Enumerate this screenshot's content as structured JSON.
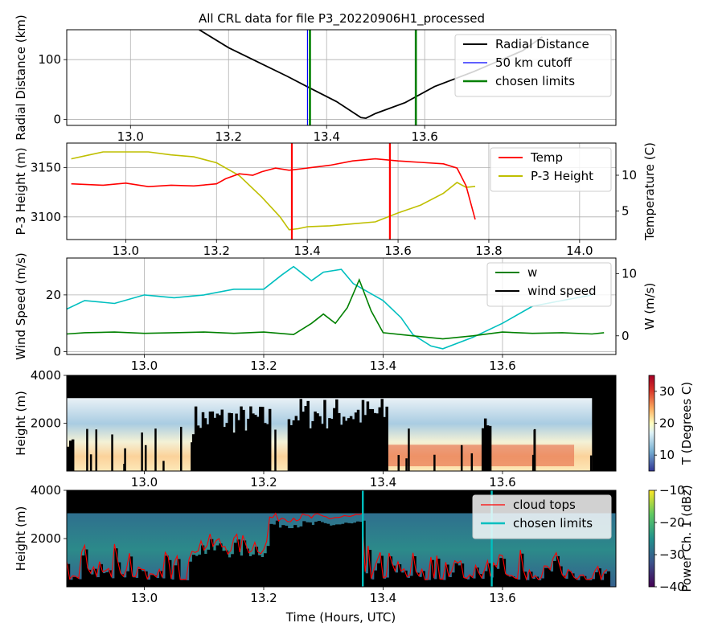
{
  "figure": {
    "title": "All CRL data for file P3_20220906H1_processed",
    "xlabel_bottom": "Time (Hours, UTC)"
  },
  "chart_data": [
    {
      "panel": "radial",
      "type": "line",
      "ylabel": "Radial Distance (km)",
      "xlim": [
        12.87,
        13.99
      ],
      "ylim": [
        -10,
        150
      ],
      "xticks": [
        "13.0",
        "13.2",
        "13.4",
        "13.6"
      ],
      "yticks": [
        "0",
        "100"
      ],
      "grid": true,
      "legend_position": "upper right",
      "legend": [
        "Radial Distance",
        "50 km cutoff",
        "chosen limits"
      ],
      "series": [
        {
          "name": "Radial Distance",
          "color": "#000000",
          "x": [
            13.14,
            13.2,
            13.26,
            13.32,
            13.36,
            13.42,
            13.47,
            13.48,
            13.5,
            13.56,
            13.62,
            13.7,
            13.8,
            13.84
          ],
          "y": [
            150,
            120,
            96,
            72,
            55,
            30,
            3,
            2,
            10,
            28,
            55,
            80,
            115,
            138
          ]
        },
        {
          "name": "50 km cutoff",
          "color": "#0000ff",
          "vlines": [
            13.361,
            13.581
          ]
        },
        {
          "name": "chosen limits",
          "color": "#008000",
          "vlines": [
            13.366,
            13.582
          ]
        }
      ]
    },
    {
      "panel": "height_temp",
      "type": "line",
      "ylabel": "P-3 Height (m)",
      "ylabel_right": "Temperature (C)",
      "xlim": [
        12.87,
        14.08
      ],
      "ylim": [
        3077,
        3175
      ],
      "ylim_right": [
        1,
        14.5
      ],
      "xticks": [
        "13.0",
        "13.2",
        "13.4",
        "13.6",
        "13.8",
        "14.0"
      ],
      "yticks": [
        "3100",
        "3150"
      ],
      "yticks_right": [
        "5",
        "10"
      ],
      "grid": true,
      "legend_position": "upper right",
      "legend": [
        "Temp",
        "P-3 Height"
      ],
      "vlines_color": "#ff0000",
      "vlines": [
        13.366,
        13.582
      ],
      "series": [
        {
          "name": "Temp",
          "color": "#ff0000",
          "axis": "right",
          "x": [
            12.88,
            12.95,
            13.0,
            13.05,
            13.1,
            13.15,
            13.2,
            13.22,
            13.25,
            13.28,
            13.3,
            13.33,
            13.36,
            13.4,
            13.45,
            13.5,
            13.55,
            13.6,
            13.65,
            13.7,
            13.73,
            13.75,
            13.77
          ],
          "y": [
            8.8,
            8.6,
            8.9,
            8.4,
            8.6,
            8.5,
            8.8,
            9.5,
            10.2,
            10.0,
            10.5,
            11.0,
            10.7,
            11.0,
            11.4,
            12.0,
            12.3,
            12.0,
            11.8,
            11.6,
            11.0,
            8.5,
            3.8
          ]
        },
        {
          "name": "P-3 Height",
          "color": "#bfbf00",
          "axis": "left",
          "x": [
            12.88,
            12.92,
            12.95,
            13.0,
            13.05,
            13.1,
            13.15,
            13.2,
            13.25,
            13.3,
            13.34,
            13.36,
            13.38,
            13.4,
            13.45,
            13.5,
            13.55,
            13.6,
            13.65,
            13.7,
            13.73,
            13.75,
            13.77
          ],
          "y": [
            3159,
            3163,
            3166,
            3166,
            3166,
            3163,
            3161,
            3155,
            3142,
            3120,
            3100,
            3087,
            3088,
            3090,
            3091,
            3093,
            3095,
            3104,
            3112,
            3124,
            3135,
            3130,
            3131
          ]
        }
      ]
    },
    {
      "panel": "wind",
      "type": "line",
      "ylabel": "Wind Speed (m/s)",
      "ylabel_right": "W (m/s)",
      "xlim": [
        12.87,
        13.79
      ],
      "ylim": [
        -1,
        33
      ],
      "ylim_right": [
        -3,
        12.5
      ],
      "xticks": [
        "13.0",
        "13.2",
        "13.4",
        "13.6"
      ],
      "yticks": [
        "0",
        "20"
      ],
      "yticks_right": [
        "0",
        "10"
      ],
      "grid": true,
      "legend_position": "upper right",
      "legend": [
        "w",
        "wind speed"
      ],
      "series": [
        {
          "name": "wind speed",
          "color": "#00bfbf",
          "axis": "left",
          "x": [
            12.87,
            12.9,
            12.95,
            13.0,
            13.05,
            13.1,
            13.15,
            13.2,
            13.23,
            13.25,
            13.28,
            13.3,
            13.33,
            13.35,
            13.4,
            13.43,
            13.45,
            13.48,
            13.5,
            13.55,
            13.6,
            13.65,
            13.7,
            13.75
          ],
          "y": [
            15,
            18,
            17,
            20,
            19,
            20,
            22,
            22,
            27,
            30,
            25,
            28,
            29,
            24,
            18,
            12,
            6,
            2,
            1,
            5,
            10,
            16,
            18,
            20
          ]
        },
        {
          "name": "w",
          "color": "#008000",
          "axis": "right",
          "x": [
            12.87,
            12.9,
            12.95,
            13.0,
            13.05,
            13.1,
            13.15,
            13.2,
            13.25,
            13.28,
            13.3,
            13.32,
            13.34,
            13.36,
            13.38,
            13.4,
            13.45,
            13.5,
            13.55,
            13.6,
            13.65,
            13.7,
            13.75,
            13.77
          ],
          "y": [
            0.3,
            0.5,
            0.6,
            0.4,
            0.5,
            0.6,
            0.4,
            0.6,
            0.2,
            2.0,
            3.5,
            2.0,
            4.5,
            9.0,
            4.0,
            0.5,
            0.0,
            -0.5,
            0.0,
            0.6,
            0.4,
            0.5,
            0.3,
            0.5
          ]
        }
      ]
    },
    {
      "panel": "temperature_curtain",
      "type": "heatmap",
      "ylabel": "Height (m)",
      "colorbar_label": "T (Degrees C)",
      "colormap": "RdYlBu_r",
      "clim": [
        5,
        35
      ],
      "xlim": [
        12.87,
        13.79
      ],
      "ylim": [
        0,
        4000
      ],
      "xticks": [
        "13.0",
        "13.2",
        "13.4",
        "13.6"
      ],
      "yticks": [
        "2000",
        "4000"
      ],
      "colorbar_ticks": [
        "10",
        "20",
        "30"
      ]
    },
    {
      "panel": "power_curtain",
      "type": "heatmap",
      "ylabel": "Height (m)",
      "colorbar_label": "Power Ch. 1 (dBz)",
      "colormap": "viridis",
      "clim": [
        -40,
        -10
      ],
      "xlim": [
        12.87,
        13.79
      ],
      "ylim": [
        0,
        4000
      ],
      "xticks": [
        "13.0",
        "13.2",
        "13.4",
        "13.6"
      ],
      "yticks": [
        "2000",
        "4000"
      ],
      "colorbar_ticks": [
        "-10",
        "-20",
        "-30",
        "-40"
      ],
      "legend_position": "upper right",
      "legend": [
        "cloud tops",
        "chosen limits"
      ],
      "vlines_color": "#00bfbf",
      "vlines": [
        13.366,
        13.582
      ]
    }
  ]
}
